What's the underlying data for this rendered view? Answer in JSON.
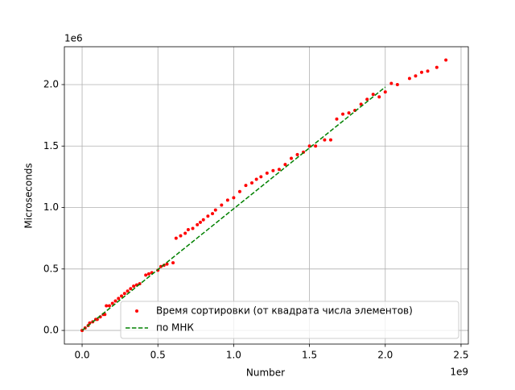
{
  "chart_data": {
    "type": "scatter",
    "xlabel": "Number",
    "ylabel": "Microseconds",
    "x_offset_label": "1e9",
    "y_offset_label": "1e6",
    "xlim": [
      -0.117,
      2.548
    ],
    "ylim": [
      -0.111,
      2.308
    ],
    "xticks": [
      {
        "value": 0,
        "label": "0.0"
      },
      0.5,
      {
        "value": 1,
        "label": "1.0"
      },
      1.5,
      {
        "value": 2,
        "label": "2.0"
      },
      2.5
    ],
    "yticks": [
      {
        "value": 0,
        "label": "0.0"
      },
      0.5,
      {
        "value": 1,
        "label": "1.0"
      },
      1.5,
      {
        "value": 2,
        "label": "2.0"
      }
    ],
    "grid": true,
    "legend": "lower right",
    "series": [
      {
        "name": "Время сортировки (от квадрата числа элементов)",
        "color": "#ff0000",
        "marker": "o",
        "x": [
          0.0,
          0.02,
          0.04,
          0.05,
          0.07,
          0.09,
          0.1,
          0.12,
          0.14,
          0.15,
          0.16,
          0.18,
          0.2,
          0.22,
          0.24,
          0.26,
          0.28,
          0.3,
          0.32,
          0.34,
          0.36,
          0.38,
          0.42,
          0.44,
          0.46,
          0.5,
          0.52,
          0.54,
          0.56,
          0.6,
          0.62,
          0.65,
          0.68,
          0.7,
          0.73,
          0.76,
          0.78,
          0.8,
          0.83,
          0.86,
          0.88,
          0.92,
          0.96,
          1.0,
          1.04,
          1.08,
          1.12,
          1.15,
          1.18,
          1.22,
          1.26,
          1.3,
          1.34,
          1.38,
          1.42,
          1.46,
          1.5,
          1.54,
          1.6,
          1.64,
          1.68,
          1.72,
          1.76,
          1.8,
          1.84,
          1.88,
          1.92,
          1.96,
          2.0,
          2.04,
          2.08,
          2.16,
          2.2,
          2.24,
          2.28,
          2.34,
          2.4
        ],
        "values": [
          0.0,
          0.02,
          0.04,
          0.06,
          0.07,
          0.09,
          0.09,
          0.11,
          0.13,
          0.13,
          0.2,
          0.2,
          0.22,
          0.24,
          0.26,
          0.28,
          0.3,
          0.32,
          0.34,
          0.36,
          0.37,
          0.38,
          0.45,
          0.46,
          0.47,
          0.49,
          0.52,
          0.53,
          0.54,
          0.55,
          0.75,
          0.77,
          0.79,
          0.82,
          0.83,
          0.86,
          0.88,
          0.9,
          0.93,
          0.95,
          0.98,
          1.02,
          1.06,
          1.08,
          1.13,
          1.18,
          1.2,
          1.23,
          1.25,
          1.28,
          1.3,
          1.31,
          1.35,
          1.4,
          1.43,
          1.45,
          1.5,
          1.5,
          1.55,
          1.55,
          1.72,
          1.76,
          1.77,
          1.79,
          1.84,
          1.88,
          1.92,
          1.9,
          1.94,
          2.01,
          2.0,
          2.05,
          2.07,
          2.1,
          2.11,
          2.14,
          2.2
        ]
      },
      {
        "name": "по МНК",
        "color": "#008000",
        "linestyle": "--",
        "x": [
          0.0,
          2.0
        ],
        "values": [
          0.0,
          1.98
        ]
      }
    ]
  }
}
